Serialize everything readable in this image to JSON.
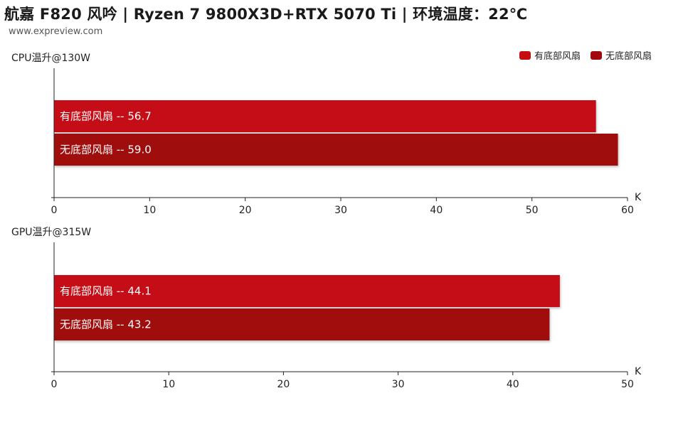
{
  "header": {
    "title": "航嘉 F820 风吟 | Ryzen 7 9800X3D+RTX 5070 Ti | 环境温度：22℃",
    "source": "www.expreview.com"
  },
  "legend": [
    {
      "label": "有底部风扇",
      "color": "#c40c12"
    },
    {
      "label": "无底部风扇",
      "color": "#a0080c"
    }
  ],
  "chart_data": [
    {
      "type": "bar",
      "orientation": "horizontal",
      "title": "CPU温升@130W",
      "unit": "K",
      "xlim": [
        0,
        60
      ],
      "ticks": [
        0,
        10,
        20,
        30,
        40,
        50,
        60
      ],
      "series": [
        {
          "name": "有底部风扇",
          "value": 56.7,
          "label": "有底部风扇  --  56.7"
        },
        {
          "name": "无底部风扇",
          "value": 59.0,
          "label": "无底部风扇  --  59.0"
        }
      ]
    },
    {
      "type": "bar",
      "orientation": "horizontal",
      "title": "GPU温升@315W",
      "unit": "K",
      "xlim": [
        0,
        50
      ],
      "ticks": [
        0,
        10,
        20,
        30,
        40,
        50
      ],
      "series": [
        {
          "name": "有底部风扇",
          "value": 44.1,
          "label": "有底部风扇  --  44.1"
        },
        {
          "name": "无底部风扇",
          "value": 43.2,
          "label": "无底部风扇  --  43.2"
        }
      ]
    }
  ]
}
